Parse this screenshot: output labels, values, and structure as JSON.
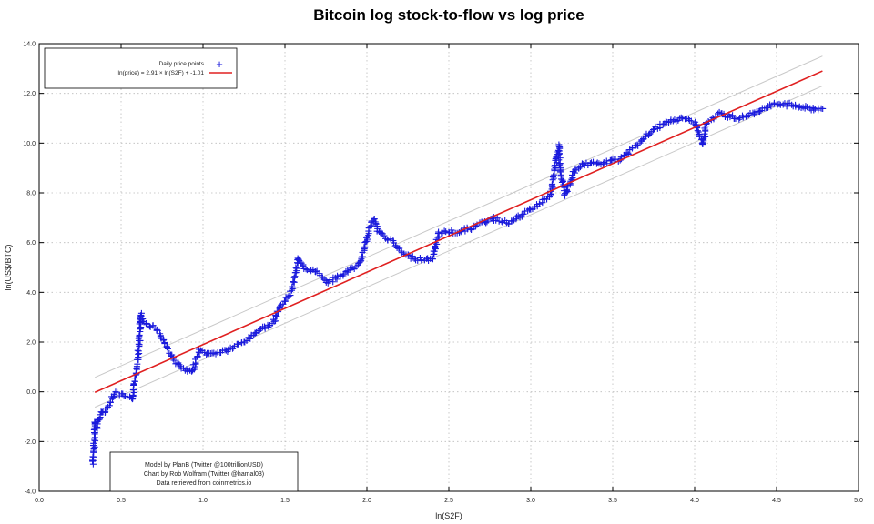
{
  "chart_data": {
    "type": "scatter",
    "title": "Bitcoin log stock-to-flow vs log price",
    "xlabel": "ln(S2F)",
    "ylabel": "ln(US$/BTC)",
    "xlim": [
      0,
      5
    ],
    "ylim": [
      -4,
      14
    ],
    "xticks": [
      "0.0",
      "0.5",
      "1.0",
      "1.5",
      "2.0",
      "2.5",
      "3.0",
      "3.5",
      "4.0",
      "4.5",
      "5.0"
    ],
    "yticks": [
      "-4.0",
      "-2.0",
      "0.0",
      "2.0",
      "4.0",
      "6.0",
      "8.0",
      "10.0",
      "12.0",
      "14.0"
    ],
    "grid": true,
    "legend_placement": "top-left",
    "colors": {
      "points": "#1a1adc",
      "fit": "#e02020",
      "bands": "#c8c8c8"
    },
    "series": [
      {
        "name": "Daily price points",
        "marker": "plus",
        "points": [
          [
            0.33,
            -2.9
          ],
          [
            0.33,
            -2.5
          ],
          [
            0.34,
            -1.8
          ],
          [
            0.34,
            -1.2
          ],
          [
            0.35,
            -1.5
          ],
          [
            0.37,
            -0.9
          ],
          [
            0.4,
            -0.8
          ],
          [
            0.43,
            -0.5
          ],
          [
            0.46,
            -0.05
          ],
          [
            0.51,
            -0.15
          ],
          [
            0.55,
            -0.25
          ],
          [
            0.57,
            -0.35
          ],
          [
            0.59,
            0.75
          ],
          [
            0.61,
            1.85
          ],
          [
            0.62,
            3.1
          ],
          [
            0.63,
            2.8
          ],
          [
            0.67,
            2.7
          ],
          [
            0.71,
            2.6
          ],
          [
            0.76,
            2.05
          ],
          [
            0.82,
            1.3
          ],
          [
            0.87,
            0.94
          ],
          [
            0.93,
            0.76
          ],
          [
            0.98,
            1.67
          ],
          [
            1.04,
            1.5
          ],
          [
            1.1,
            1.6
          ],
          [
            1.15,
            1.67
          ],
          [
            1.26,
            2.04
          ],
          [
            1.32,
            2.4
          ],
          [
            1.43,
            2.77
          ],
          [
            1.48,
            3.5
          ],
          [
            1.54,
            4.05
          ],
          [
            1.58,
            5.33
          ],
          [
            1.62,
            4.96
          ],
          [
            1.71,
            4.78
          ],
          [
            1.76,
            4.4
          ],
          [
            1.87,
            4.78
          ],
          [
            1.96,
            5.15
          ],
          [
            2.01,
            6.43
          ],
          [
            2.04,
            6.97
          ],
          [
            2.07,
            6.43
          ],
          [
            2.15,
            6.06
          ],
          [
            2.23,
            5.5
          ],
          [
            2.32,
            5.33
          ],
          [
            2.4,
            5.33
          ],
          [
            2.44,
            6.43
          ],
          [
            2.54,
            6.43
          ],
          [
            2.65,
            6.6
          ],
          [
            2.76,
            6.98
          ],
          [
            2.87,
            6.8
          ],
          [
            2.96,
            7.16
          ],
          [
            3.04,
            7.52
          ],
          [
            3.12,
            7.9
          ],
          [
            3.17,
            9.9
          ],
          [
            3.18,
            8.8
          ],
          [
            3.21,
            7.9
          ],
          [
            3.26,
            8.8
          ],
          [
            3.32,
            9.17
          ],
          [
            3.43,
            9.17
          ],
          [
            3.54,
            9.35
          ],
          [
            3.65,
            9.9
          ],
          [
            3.73,
            10.45
          ],
          [
            3.82,
            10.8
          ],
          [
            3.93,
            11.0
          ],
          [
            4.01,
            10.8
          ],
          [
            4.05,
            9.9
          ],
          [
            4.07,
            10.8
          ],
          [
            4.15,
            11.18
          ],
          [
            4.26,
            11.0
          ],
          [
            4.37,
            11.18
          ],
          [
            4.48,
            11.55
          ],
          [
            4.59,
            11.55
          ],
          [
            4.71,
            11.37
          ],
          [
            4.79,
            11.37
          ]
        ]
      },
      {
        "name": "ln(price) = 2.91 × ln(S2F) + -1.01",
        "type": "line",
        "slope": 2.91,
        "intercept": -1.01,
        "x_range": [
          0.34,
          4.78
        ]
      }
    ],
    "bands": {
      "offset": 0.6
    },
    "annotation": [
      "Model by PlanB (Twitter @100trillionUSD)",
      "Chart by Rob Wolfram (Twitter @hamal03)",
      "Data retrieved from coinmetrics.io"
    ]
  }
}
